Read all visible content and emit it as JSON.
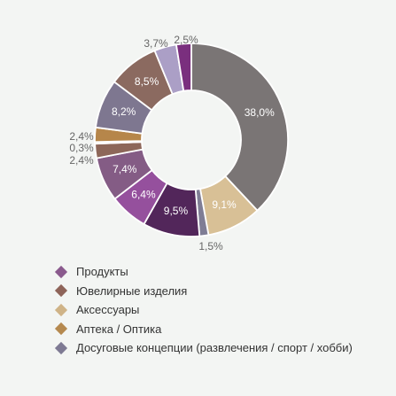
{
  "chart_data": {
    "type": "pie",
    "slices": [
      {
        "label": "38,0%",
        "value": 38.0,
        "color": "#7a7575",
        "label_color": "#ffffff",
        "label_pos": "inside"
      },
      {
        "label": "9,1%",
        "value": 9.1,
        "color": "#d8c096",
        "label_color": "#ffffff",
        "label_pos": "inside"
      },
      {
        "label": "1,5%",
        "value": 1.5,
        "color": "#7f7d95",
        "label_color": "#666666",
        "label_pos": "outside"
      },
      {
        "label": "9,5%",
        "value": 9.5,
        "color": "#52265a",
        "label_color": "#ffffff",
        "label_pos": "inside"
      },
      {
        "label": "6,4%",
        "value": 6.4,
        "color": "#95509d",
        "label_color": "#ffffff",
        "label_pos": "inside"
      },
      {
        "label": "7,4%",
        "value": 7.4,
        "color": "#845c85",
        "label_color": "#ffffff",
        "label_pos": "inside"
      },
      {
        "label": "2,4%",
        "value": 2.4,
        "color": "#8d6759",
        "label_color": "#666666",
        "label_pos": "outside"
      },
      {
        "label": "0,3%",
        "value": 0.3,
        "color": "#d1c095",
        "label_color": "#666666",
        "label_pos": "outside"
      },
      {
        "label": "2,4%",
        "value": 2.4,
        "color": "#b6864a",
        "label_color": "#666666",
        "label_pos": "outside"
      },
      {
        "label": "8,2%",
        "value": 8.2,
        "color": "#7e7790",
        "label_color": "#ffffff",
        "label_pos": "inside"
      },
      {
        "label": "8,5%",
        "value": 8.5,
        "color": "#8b6a60",
        "label_color": "#ffffff",
        "label_pos": "inside"
      },
      {
        "label": "3,7%",
        "value": 3.7,
        "color": "#ab9fc6",
        "label_color": "#666666",
        "label_pos": "outside"
      },
      {
        "label": "2,5%",
        "value": 2.5,
        "color": "#7a2f7e",
        "label_color": "#666666",
        "label_pos": "outside"
      }
    ],
    "legend": [
      {
        "label": "Продукты",
        "color": "#8a5a8d"
      },
      {
        "label": "Ювелирные изделия",
        "color": "#8e6459"
      },
      {
        "label": "Аксессуары",
        "color": "#cfb387"
      },
      {
        "label": "Аптека / Оптика",
        "color": "#b5894f"
      },
      {
        "label": "Досуговые концепции (развлечения / спорт / хобби)",
        "color": "#7e7a93"
      }
    ],
    "legend_placement": "bottom-left"
  }
}
